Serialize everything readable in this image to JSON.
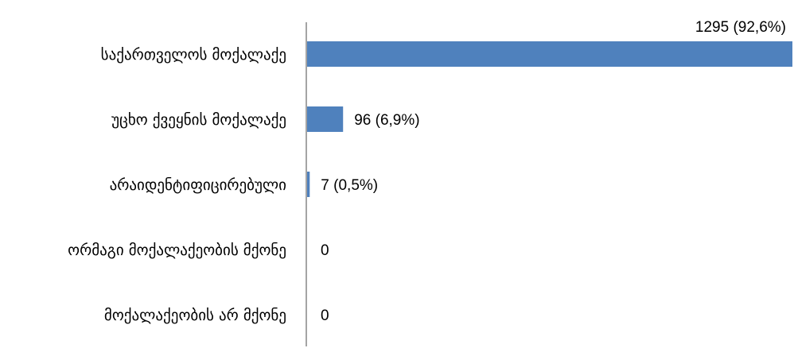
{
  "chart_data": {
    "type": "bar",
    "orientation": "horizontal",
    "categories": [
      "საქართველოს მოქალაქე",
      "უცხო ქვეყნის მოქალაქე",
      "არაიდენტიფიცირებული",
      "ორმაგი მოქალაქეობის მქონე",
      "მოქალაქეობის არ მქონე"
    ],
    "values": [
      1295,
      96,
      7,
      0,
      0
    ],
    "data_labels": [
      "1295 (92,6%)",
      "96 (6,9%)",
      "7 (0,5%)",
      "0",
      "0"
    ],
    "bar_color": "#4f81bd",
    "xlim": [
      0,
      1295
    ],
    "grid": false,
    "legend": "none",
    "title": "",
    "xlabel": "",
    "ylabel": ""
  }
}
